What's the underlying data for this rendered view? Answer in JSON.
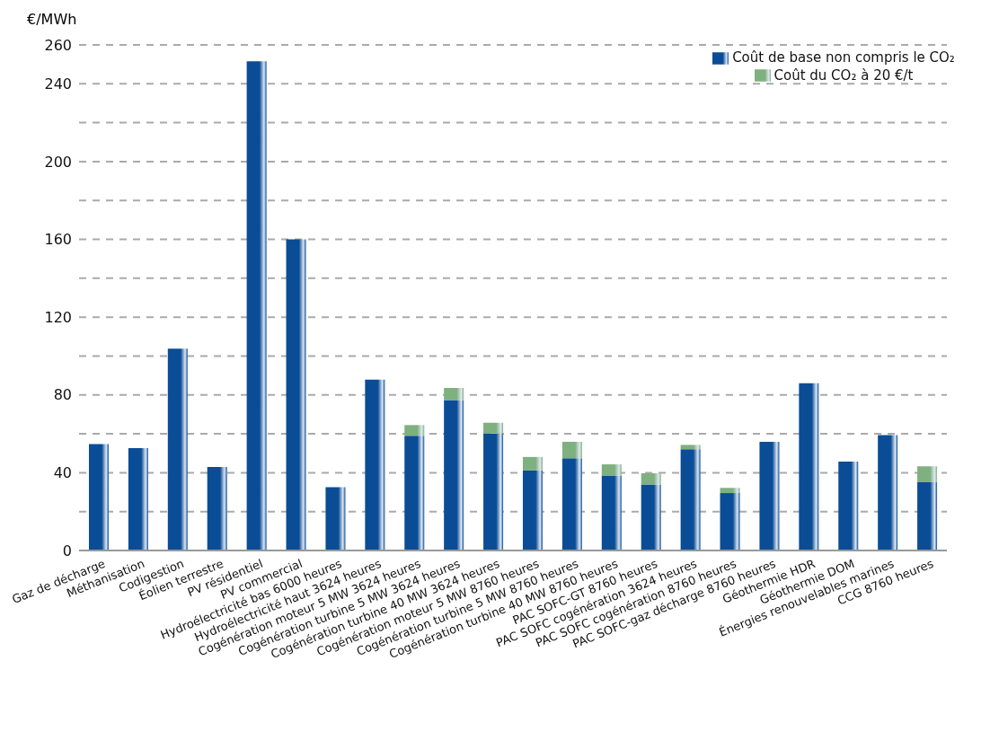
{
  "chart_data": {
    "type": "bar",
    "stacked": true,
    "ylabel": "€/MWh",
    "categories": [
      "Gaz de décharge",
      "Méthanisation",
      "Codigestion",
      "Éolien terrestre",
      "PV résidentiel",
      "PV commercial",
      "Hydroélectricité bas 6000 heures",
      "Hydroélectricité haut 3624 heures",
      "Cogénération moteur 5 MW 3624 heures",
      "Cogénération turbine 5 MW 3624 heures",
      "Cogénération turbine 40 MW 3624 heures",
      "Cogénération moteur 5 MW 8760 heures",
      "Cogénération turbine 5 MW 8760 heures",
      "Cogénération turbine 40 MW 8760 heures",
      "PAC SOFC-GT 8760 heures",
      "PAC SOFC cogénération 3624 heures",
      "PAC SOFC cogénération 8760 heures",
      "PAC SOFC-gaz décharge 8760 heures",
      "Géothermie HDR",
      "Géothermie DOM",
      "Énergies renouvelables marines",
      "CCG 8760 heures"
    ],
    "series": [
      {
        "name": "Coût de base non compris le CO₂",
        "color": "#0a4d96",
        "values": [
          54.7,
          52.6,
          103.8,
          42.9,
          251.6,
          160,
          32.6,
          87.9,
          59,
          77.4,
          60.2,
          41.2,
          47.4,
          38.6,
          34,
          52.1,
          29.5,
          55.9,
          86,
          45.7,
          59.3,
          35.3
        ]
      },
      {
        "name": "Coût du CO₂ à 20 €/t",
        "color": "#7fb07f",
        "values": [
          null,
          null,
          null,
          null,
          null,
          null,
          null,
          null,
          5.5,
          6.2,
          5.5,
          6.9,
          8.5,
          5.7,
          5.7,
          2.2,
          2.7,
          null,
          null,
          null,
          null,
          8
        ]
      }
    ],
    "ylim": [
      0,
      260
    ],
    "yticks": [
      0,
      {
        "value": 20,
        "label": null
      },
      40,
      {
        "value": 60,
        "label": null
      },
      80,
      {
        "value": 100,
        "label": null
      },
      120,
      {
        "value": 140,
        "label": null
      },
      160,
      {
        "value": 180,
        "label": null
      },
      200,
      {
        "value": 220,
        "label": null
      },
      240,
      260
    ],
    "grid": "y",
    "legend": "top right"
  }
}
